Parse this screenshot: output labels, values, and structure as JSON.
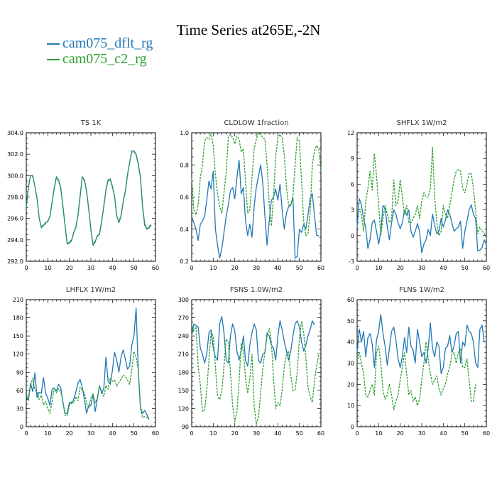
{
  "title": "Time Series at265E,-2N",
  "legend": [
    {
      "name": "cam075_dflt_rg",
      "color": "#1f77b4",
      "style": "solid"
    },
    {
      "name": "cam075_c2_rg",
      "color": "#2ca02c",
      "style": "dashed"
    }
  ],
  "chart_data": [
    {
      "type": "line",
      "title": "TS   1K",
      "xlim": [
        0,
        60
      ],
      "ylim": [
        292,
        304
      ],
      "xticks": [
        0,
        10,
        20,
        30,
        40,
        50,
        60
      ],
      "yticks": [
        292,
        294,
        296,
        298,
        300,
        302,
        304
      ],
      "ytick_labels": [
        "292.0",
        "294.0",
        "296.0",
        "298.0",
        "300.0",
        "302.0",
        "304.0"
      ],
      "series": [
        {
          "name": "cam075_dflt_rg",
          "color": "#1f77b4",
          "dashed": false,
          "values": [
            297.0,
            298.9,
            300.0,
            300.0,
            299.0,
            297.9,
            296.0,
            295.2,
            295.4,
            295.6,
            295.7,
            296.2,
            297.6,
            298.9,
            299.9,
            299.6,
            298.9,
            297.2,
            295.4,
            293.6,
            293.7,
            293.9,
            294.7,
            295.1,
            296.3,
            298.1,
            299.9,
            299.6,
            298.6,
            296.9,
            295.0,
            293.5,
            293.8,
            294.4,
            294.5,
            295.7,
            297.1,
            298.7,
            299.6,
            299.7,
            299.0,
            298.1,
            296.3,
            295.6,
            296.2,
            297.6,
            298.6,
            300.1,
            301.2,
            302.3,
            302.3,
            302.0,
            301.1,
            299.9,
            297.1,
            295.5,
            295.0,
            295.1,
            295.4
          ]
        },
        {
          "name": "cam075_c2_rg",
          "color": "#2ca02c",
          "dashed": true,
          "values": [
            297.2,
            299.0,
            300.0,
            299.9,
            299.0,
            297.8,
            296.0,
            295.1,
            295.3,
            295.5,
            295.8,
            296.1,
            297.5,
            298.8,
            299.8,
            299.5,
            298.8,
            297.0,
            295.3,
            293.6,
            293.8,
            294.0,
            294.6,
            295.2,
            296.2,
            298.0,
            299.8,
            299.5,
            298.5,
            296.8,
            294.9,
            293.6,
            293.9,
            294.3,
            294.6,
            295.8,
            297.2,
            298.6,
            299.5,
            299.6,
            298.9,
            298.0,
            296.2,
            295.7,
            296.3,
            297.5,
            298.5,
            300.0,
            301.3,
            302.2,
            302.2,
            301.9,
            301.0,
            299.8,
            297.0,
            295.3,
            295.0,
            295.2,
            295.5
          ]
        }
      ]
    },
    {
      "type": "line",
      "title": "CLDLOW   1fraction",
      "xlim": [
        0,
        60
      ],
      "ylim": [
        0.2,
        1.0
      ],
      "xticks": [
        0,
        10,
        20,
        30,
        40,
        50,
        60
      ],
      "yticks": [
        0.2,
        0.4,
        0.6,
        0.8,
        1.0
      ],
      "ytick_labels": [
        "0.2",
        "0.4",
        "0.6",
        "0.8",
        "1.0"
      ],
      "series": [
        {
          "name": "cam075_dflt_rg",
          "color": "#1f77b4",
          "dashed": false,
          "values": [
            0.48,
            0.44,
            0.4,
            0.33,
            0.43,
            0.45,
            0.48,
            0.58,
            0.7,
            0.65,
            0.76,
            0.4,
            0.3,
            0.22,
            0.28,
            0.38,
            0.48,
            0.55,
            0.64,
            0.66,
            0.59,
            0.72,
            0.83,
            0.62,
            0.66,
            0.45,
            0.36,
            0.43,
            0.35,
            0.54,
            0.66,
            0.73,
            0.8,
            0.69,
            0.48,
            0.3,
            0.45,
            0.58,
            0.6,
            0.65,
            0.58,
            0.68,
            0.52,
            0.4,
            0.5,
            0.54,
            0.55,
            0.6,
            0.22,
            0.23,
            0.4,
            0.38,
            0.43,
            0.4,
            0.49,
            0.59,
            0.62,
            0.49,
            0.36,
            0.36
          ]
        },
        {
          "name": "cam075_c2_rg",
          "color": "#2ca02c",
          "dashed": true,
          "values": [
            0.72,
            0.52,
            0.49,
            0.55,
            0.72,
            0.8,
            0.95,
            0.97,
            0.96,
            1.0,
            0.92,
            0.74,
            0.62,
            0.54,
            0.5,
            0.63,
            0.75,
            0.97,
            0.99,
            0.97,
            0.93,
            0.98,
            0.96,
            0.88,
            0.9,
            0.69,
            0.5,
            0.52,
            0.72,
            0.9,
            0.96,
            1.0,
            0.99,
            0.97,
            0.96,
            0.8,
            0.55,
            0.42,
            0.6,
            0.85,
            0.97,
            0.99,
            0.97,
            0.86,
            0.66,
            0.55,
            0.55,
            0.6,
            0.8,
            0.97,
            0.95,
            0.7,
            0.45,
            0.36,
            0.37,
            0.5,
            0.8,
            0.89,
            0.92,
            0.9,
            0.76
          ]
        }
      ]
    },
    {
      "type": "line",
      "title": "SHFLX   1W/m2",
      "xlim": [
        0,
        60
      ],
      "ylim": [
        -3,
        12
      ],
      "xticks": [
        0,
        10,
        20,
        30,
        40,
        50,
        60
      ],
      "yticks": [
        -3,
        0,
        3,
        6,
        9,
        12
      ],
      "ytick_labels": [
        "-3",
        "0",
        "3",
        "6",
        "9",
        "12"
      ],
      "series": [
        {
          "name": "cam075_dflt_rg",
          "color": "#1f77b4",
          "dashed": false,
          "values": [
            1.0,
            4.3,
            3.6,
            2.0,
            0.9,
            -1.5,
            -0.5,
            1.5,
            1.8,
            0.5,
            -1.0,
            0.5,
            3.5,
            3.2,
            1.0,
            -0.5,
            1.5,
            3.0,
            2.5,
            1.5,
            0.8,
            1.5,
            3.0,
            2.4,
            3.0,
            0.5,
            -0.2,
            0.5,
            1.4,
            0.5,
            -2.0,
            -1.0,
            -0.5,
            0.7,
            0.0,
            2.5,
            1.2,
            0.2,
            0.5,
            2.0,
            1.0,
            1.8,
            3.0,
            2.5,
            1.5,
            0.5,
            0.8,
            1.0,
            1.7,
            -1.5,
            0.5,
            1.7,
            3.0,
            3.6,
            2.5,
            2.0,
            -1.8,
            -1.7,
            -1.4,
            -0.5,
            -1.0
          ]
        },
        {
          "name": "cam075_c2_rg",
          "color": "#2ca02c",
          "dashed": true,
          "values": [
            3.0,
            3.0,
            2.5,
            0.5,
            4.0,
            5.5,
            7.5,
            5.3,
            9.6,
            7.0,
            3.5,
            0.0,
            2.0,
            3.5,
            2.5,
            1.5,
            2.0,
            6.5,
            3.5,
            4.0,
            6.5,
            4.5,
            2.5,
            3.5,
            1.5,
            1.5,
            2.0,
            2.5,
            3.5,
            2.0,
            4.0,
            5.0,
            4.5,
            4.5,
            5.5,
            10.3,
            4.5,
            1.5,
            0.0,
            0.5,
            3.5,
            2.5,
            2.0,
            3.5,
            5.0,
            6.5,
            7.5,
            7.7,
            7.5,
            5.5,
            5.0,
            6.0,
            7.3,
            7.2,
            5.5,
            3.0,
            0.2,
            1.0,
            0.5,
            0.3,
            -0.3
          ]
        }
      ]
    },
    {
      "type": "line",
      "title": "LHFLX   1W/m2",
      "xlim": [
        0,
        60
      ],
      "ylim": [
        0,
        210
      ],
      "xticks": [
        0,
        10,
        20,
        30,
        40,
        50,
        60
      ],
      "yticks": [
        0,
        30,
        60,
        90,
        120,
        150,
        180,
        210
      ],
      "ytick_labels": [
        "0",
        "30",
        "60",
        "90",
        "120",
        "150",
        "180",
        "210"
      ],
      "series": [
        {
          "name": "cam075_dflt_rg",
          "color": "#1f77b4",
          "dashed": false,
          "values": [
            51,
            45,
            72,
            58,
            89,
            48,
            57,
            55,
            81,
            55,
            47,
            35,
            62,
            64,
            59,
            70,
            65,
            40,
            22,
            22,
            40,
            38,
            45,
            57,
            72,
            78,
            65,
            45,
            22,
            35,
            35,
            54,
            25,
            46,
            68,
            55,
            63,
            115,
            75,
            70,
            93,
            123,
            110,
            90,
            115,
            127,
            112,
            95,
            100,
            135,
            150,
            196,
            95,
            32,
            22,
            27,
            20,
            12
          ]
        },
        {
          "name": "cam075_c2_rg",
          "color": "#2ca02c",
          "dashed": true,
          "values": [
            48,
            43,
            69,
            80,
            61,
            58,
            45,
            52,
            36,
            42,
            30,
            22,
            42,
            64,
            56,
            63,
            58,
            43,
            19,
            18,
            34,
            42,
            39,
            50,
            43,
            65,
            61,
            56,
            39,
            30,
            48,
            54,
            39,
            48,
            67,
            58,
            50,
            68,
            62,
            81,
            75,
            77,
            67,
            73,
            79,
            85,
            83,
            77,
            70,
            95,
            124,
            115,
            95,
            30,
            15,
            17,
            15,
            16
          ]
        }
      ]
    },
    {
      "type": "line",
      "title": "FSNS   1.0W/m2",
      "xlim": [
        0,
        60
      ],
      "ylim": [
        90,
        300
      ],
      "xticks": [
        0,
        10,
        20,
        30,
        40,
        50,
        60
      ],
      "yticks": [
        90,
        120,
        150,
        180,
        210,
        240,
        270,
        300
      ],
      "ytick_labels": [
        "90",
        "120",
        "150",
        "180",
        "210",
        "240",
        "270",
        "300"
      ],
      "series": [
        {
          "name": "cam075_dflt_rg",
          "color": "#1f77b4",
          "dashed": false,
          "values": [
            240,
            260,
            257,
            255,
            220,
            210,
            195,
            210,
            245,
            250,
            220,
            205,
            200,
            260,
            272,
            245,
            200,
            195,
            240,
            260,
            248,
            215,
            200,
            215,
            240,
            200,
            190,
            225,
            245,
            260,
            250,
            200,
            195,
            210,
            212,
            245,
            240,
            225,
            220,
            200,
            240,
            265,
            250,
            230,
            215,
            200,
            215,
            240,
            260,
            265,
            255,
            230,
            215,
            225,
            240,
            250,
            265,
            258
          ]
        },
        {
          "name": "cam075_c2_rg",
          "color": "#2ca02c",
          "dashed": true,
          "values": [
            255,
            248,
            255,
            190,
            160,
            115,
            118,
            150,
            200,
            245,
            240,
            190,
            140,
            135,
            150,
            190,
            235,
            230,
            180,
            125,
            98,
            115,
            165,
            228,
            215,
            170,
            145,
            170,
            210,
            125,
            95,
            105,
            145,
            185,
            215,
            240,
            252,
            230,
            170,
            120,
            130,
            125,
            150,
            190,
            210,
            215,
            175,
            150,
            150,
            180,
            235,
            265,
            245,
            205,
            155,
            140,
            130,
            165,
            190,
            210
          ]
        }
      ]
    },
    {
      "type": "line",
      "title": "FLNS   1W/m2",
      "xlim": [
        0,
        60
      ],
      "ylim": [
        0,
        60
      ],
      "xticks": [
        0,
        10,
        20,
        30,
        40,
        50,
        60
      ],
      "yticks": [
        0,
        10,
        20,
        30,
        40,
        50,
        60
      ],
      "ytick_labels": [
        "0",
        "10",
        "20",
        "30",
        "40",
        "50",
        "60"
      ],
      "series": [
        {
          "name": "cam075_dflt_rg",
          "color": "#1f77b4",
          "dashed": false,
          "values": [
            35,
            46,
            40,
            45,
            33,
            42,
            44,
            39,
            28,
            41,
            45,
            53,
            44,
            38,
            29,
            37,
            45,
            47,
            41,
            32,
            28,
            33,
            42,
            35,
            47,
            38,
            36,
            30,
            46,
            40,
            33,
            35,
            30,
            37,
            49,
            37,
            33,
            40,
            38,
            25,
            28,
            37,
            38,
            43,
            35,
            38,
            44,
            45,
            30,
            40,
            38,
            48,
            45,
            44,
            40,
            30,
            28,
            46,
            48,
            40
          ]
        },
        {
          "name": "cam075_c2_rg",
          "color": "#2ca02c",
          "dashed": true,
          "values": [
            32,
            35,
            30,
            25,
            15,
            14,
            17,
            20,
            15,
            35,
            38,
            30,
            17,
            13,
            15,
            20,
            15,
            8,
            12,
            15,
            22,
            28,
            35,
            25,
            15,
            17,
            12,
            14,
            10,
            13,
            22,
            30,
            40,
            32,
            25,
            20,
            22,
            24,
            18,
            15,
            18,
            20,
            25,
            28,
            34,
            35,
            30,
            35,
            37,
            28,
            28,
            32,
            22,
            12,
            12,
            20
          ]
        }
      ]
    }
  ]
}
